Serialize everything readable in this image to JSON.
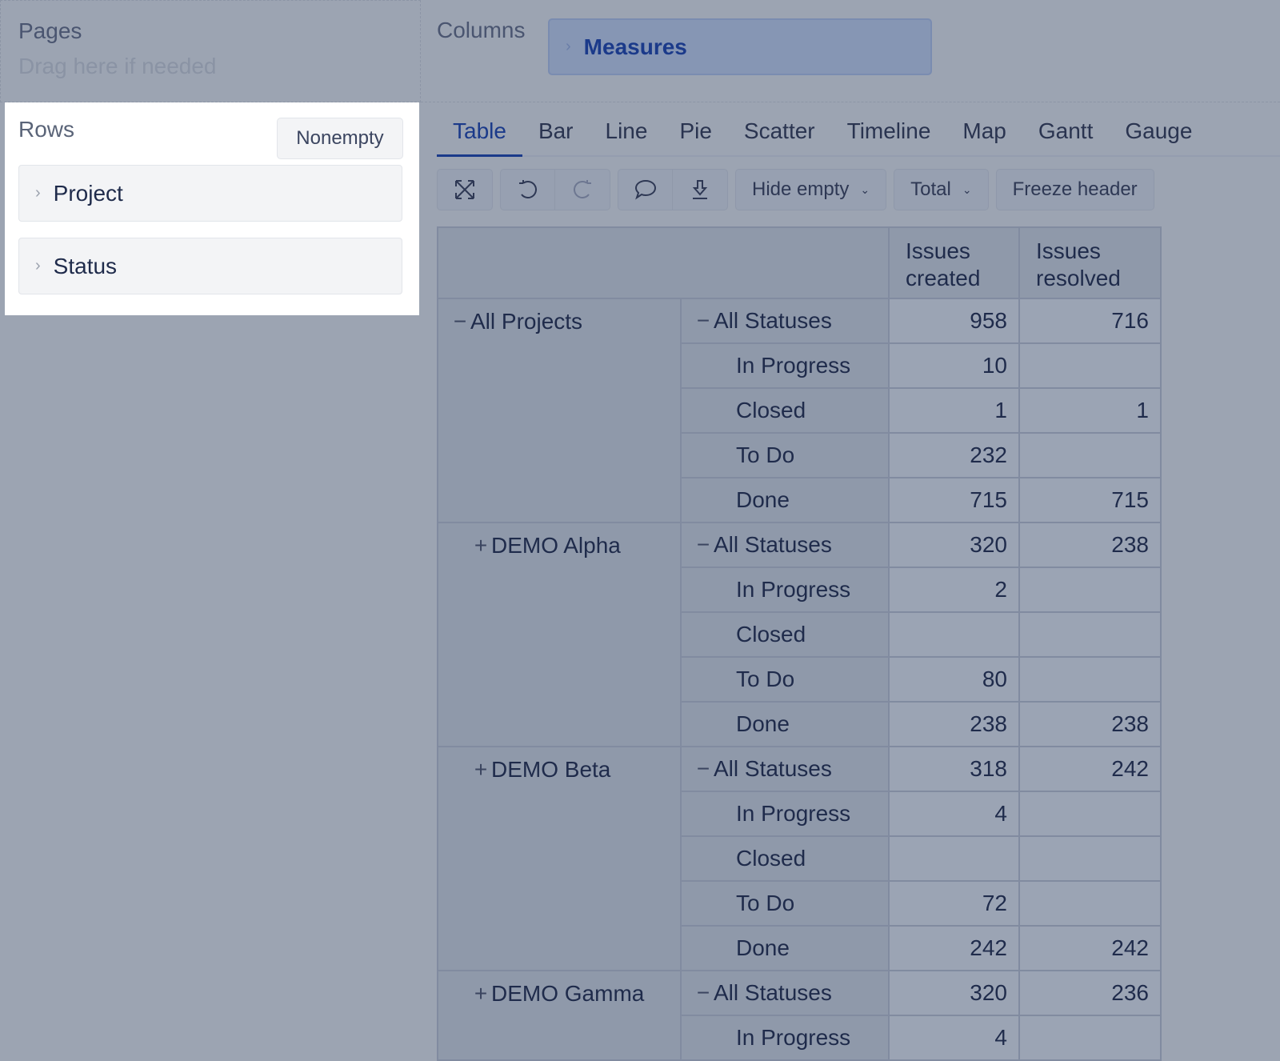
{
  "pages": {
    "title": "Pages",
    "placeholder": "Drag here if needed"
  },
  "columns": {
    "title": "Columns",
    "items": [
      {
        "label": "Measures"
      }
    ]
  },
  "rows": {
    "title": "Rows",
    "nonempty_label": "Nonempty",
    "items": [
      {
        "label": "Project"
      },
      {
        "label": "Status"
      }
    ]
  },
  "tabs": [
    {
      "label": "Table",
      "active": true
    },
    {
      "label": "Bar"
    },
    {
      "label": "Line"
    },
    {
      "label": "Pie"
    },
    {
      "label": "Scatter"
    },
    {
      "label": "Timeline"
    },
    {
      "label": "Map"
    },
    {
      "label": "Gantt"
    },
    {
      "label": "Gauge"
    }
  ],
  "toolbar": {
    "hide_empty": "Hide empty",
    "total": "Total",
    "freeze_header": "Freeze header"
  },
  "table": {
    "headers": [
      "Issues created",
      "Issues resolved"
    ],
    "groups": [
      {
        "project": "All Projects",
        "sign": "−",
        "rows": [
          {
            "status": "All Statuses",
            "sign": "−",
            "created": "958",
            "resolved": "716"
          },
          {
            "status": "In Progress",
            "created": "10",
            "resolved": ""
          },
          {
            "status": "Closed",
            "created": "1",
            "resolved": "1"
          },
          {
            "status": "To Do",
            "created": "232",
            "resolved": ""
          },
          {
            "status": "Done",
            "created": "715",
            "resolved": "715"
          }
        ]
      },
      {
        "project": "DEMO Alpha",
        "sign": "+",
        "rows": [
          {
            "status": "All Statuses",
            "sign": "−",
            "created": "320",
            "resolved": "238"
          },
          {
            "status": "In Progress",
            "created": "2",
            "resolved": ""
          },
          {
            "status": "Closed",
            "created": "",
            "resolved": ""
          },
          {
            "status": "To Do",
            "created": "80",
            "resolved": ""
          },
          {
            "status": "Done",
            "created": "238",
            "resolved": "238"
          }
        ]
      },
      {
        "project": "DEMO Beta",
        "sign": "+",
        "rows": [
          {
            "status": "All Statuses",
            "sign": "−",
            "created": "318",
            "resolved": "242"
          },
          {
            "status": "In Progress",
            "created": "4",
            "resolved": ""
          },
          {
            "status": "Closed",
            "created": "",
            "resolved": ""
          },
          {
            "status": "To Do",
            "created": "72",
            "resolved": ""
          },
          {
            "status": "Done",
            "created": "242",
            "resolved": "242"
          }
        ]
      },
      {
        "project": "DEMO Gamma",
        "sign": "+",
        "rows": [
          {
            "status": "All Statuses",
            "sign": "−",
            "created": "320",
            "resolved": "236"
          },
          {
            "status": "In Progress",
            "created": "4",
            "resolved": ""
          }
        ]
      }
    ]
  }
}
